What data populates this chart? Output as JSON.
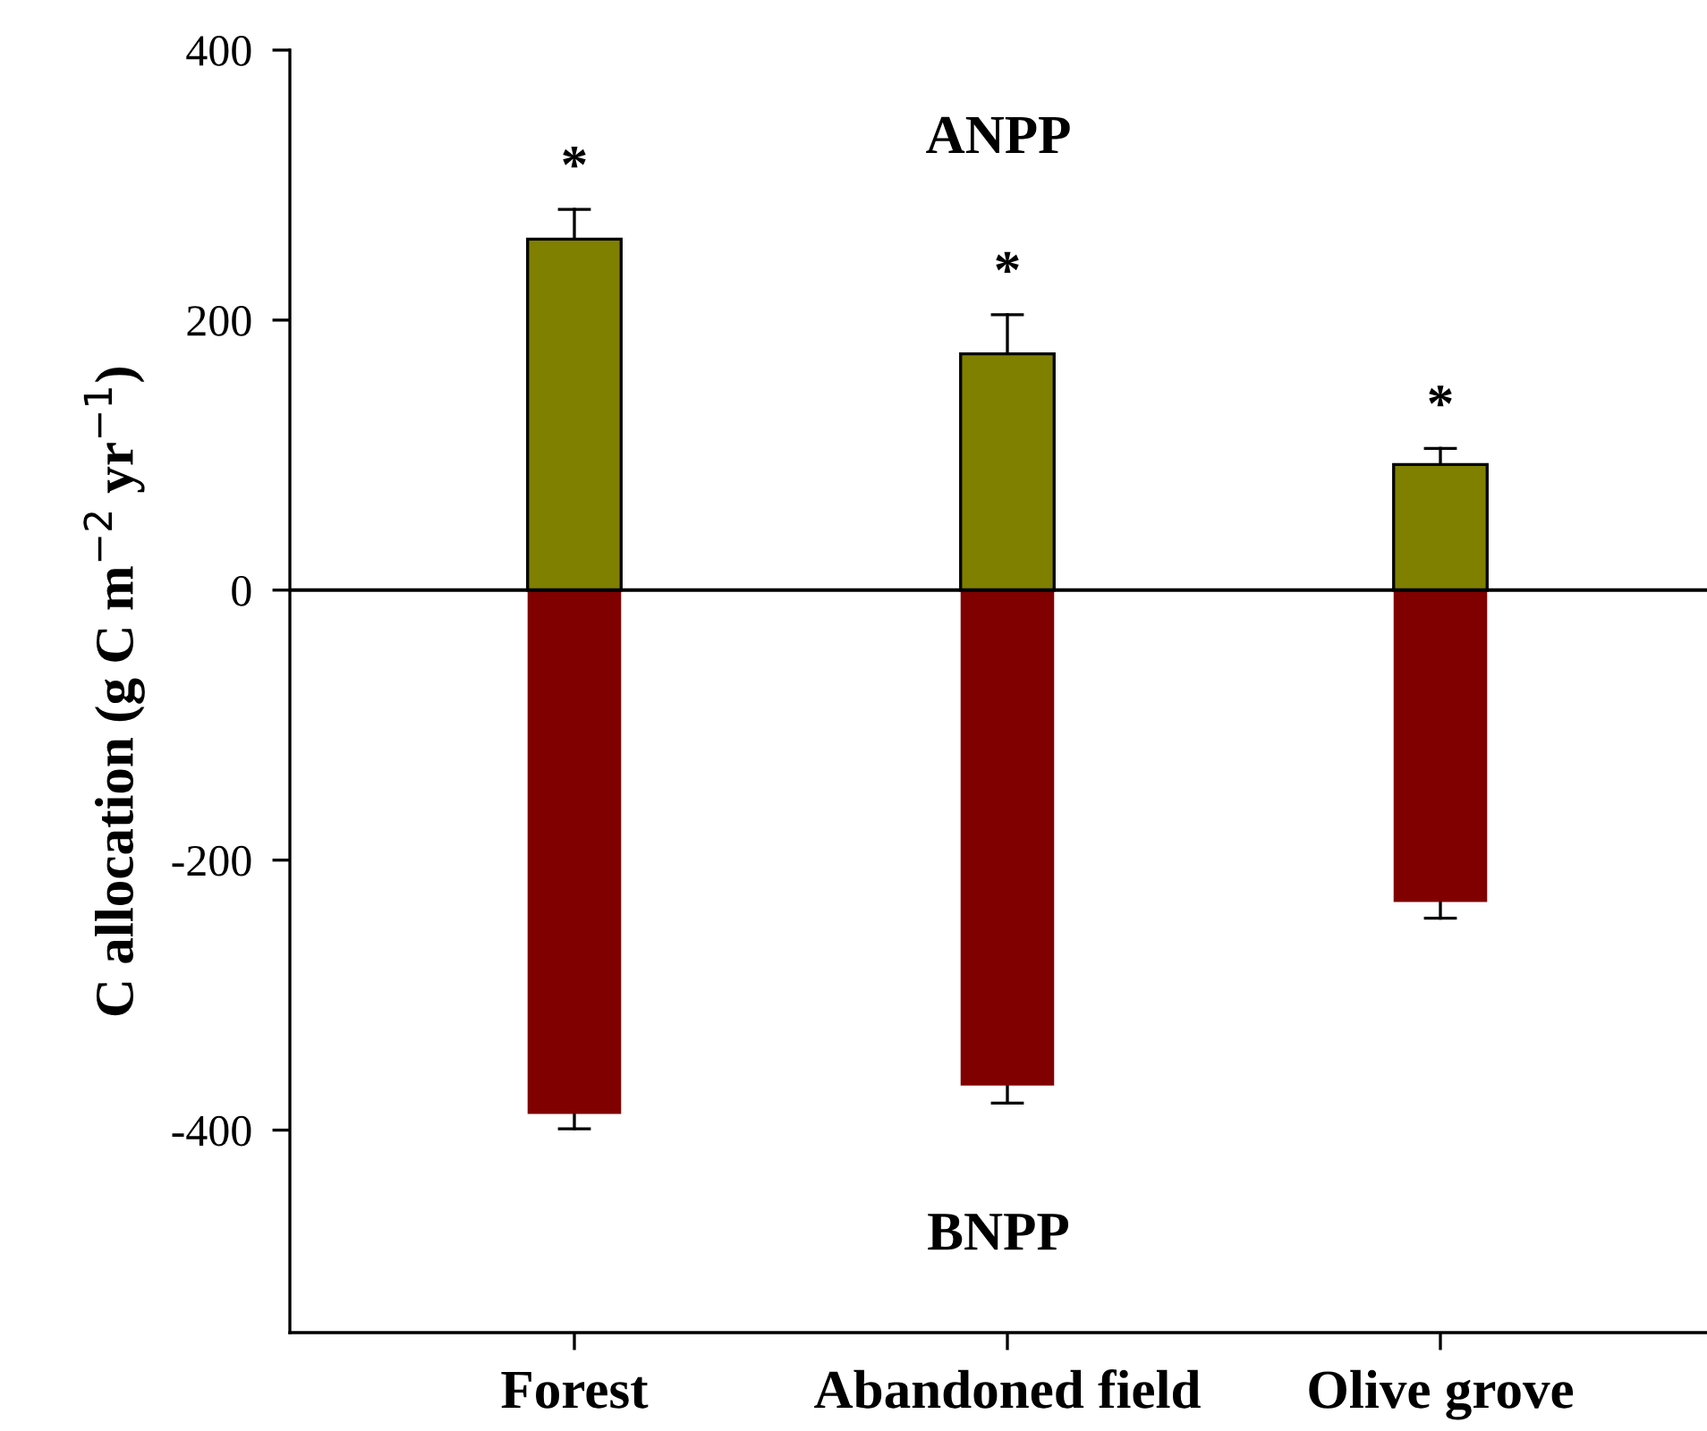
{
  "chart_data": {
    "type": "bar",
    "stacked": true,
    "ylabel": "C allocation (g C m$^{−2}$ yr$^{−1}$)",
    "categories": [
      "Forest",
      "Abandoned field",
      "Olive grove"
    ],
    "series": [
      {
        "color": "#808000",
        "values": [
          260,
          175,
          93
        ],
        "errors": [
          [
            260,
            282
          ],
          [
            175,
            204
          ],
          [
            93,
            105
          ]
        ]
      },
      {
        "color": "#800000",
        "values": [
          -388,
          -367,
          -231
        ],
        "errors": [
          [
            -399,
            -388
          ],
          [
            -380,
            -367
          ],
          [
            -243,
            -231
          ]
        ]
      }
    ],
    "ylim": [
      -550,
      400
    ],
    "yticks": [
      -400,
      -200,
      0,
      200,
      400
    ],
    "grid": false,
    "legend": false,
    "ref_lines": [
      {
        "axis": "y",
        "value": 0,
        "color": "#000000"
      }
    ],
    "annotations": [
      "*",
      "*",
      "*",
      "ANPP",
      "BNPP"
    ]
  }
}
